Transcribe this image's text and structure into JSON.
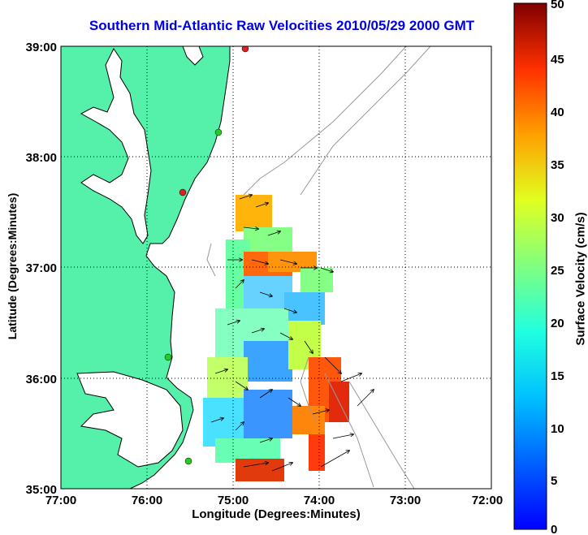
{
  "title": "Southern Mid-Atlantic Raw Velocities 2010/05/29 2000 GMT",
  "axes": {
    "xlabel": "Longitude (Degrees:Minutes)",
    "ylabel": "Latitude (Degrees:Minutes)",
    "x_ticks": [
      "77:00",
      "76:00",
      "75:00",
      "74:00",
      "73:00",
      "72:00"
    ],
    "y_ticks": [
      "39:00",
      "38:00",
      "37:00",
      "36:00",
      "35:00"
    ],
    "xlim": [
      -77,
      -72
    ],
    "ylim": [
      35,
      39
    ],
    "grid": "dotted"
  },
  "colorbar": {
    "label": "Surface Velocity (cm/s)",
    "ticks": [
      "0",
      "5",
      "10",
      "15",
      "20",
      "25",
      "30",
      "35",
      "40",
      "45",
      "50"
    ],
    "range": [
      0,
      50
    ],
    "colormap": "jet"
  },
  "colors": {
    "land": "#55f0aa",
    "coastline": "#000000",
    "bathymetry": "#999999",
    "title": "#0000e6",
    "station_green": "#22cc22",
    "station_red": "#dd2222"
  },
  "stations": [
    {
      "lon": -74.9,
      "lat": 39.0,
      "status": "active-red"
    },
    {
      "lon": -75.1,
      "lat": 38.3,
      "status": "active-green"
    },
    {
      "lon": -75.55,
      "lat": 37.6,
      "status": "active-red"
    },
    {
      "lon": -75.75,
      "lat": 36.2,
      "status": "active-green"
    },
    {
      "lon": -75.55,
      "lat": 35.3,
      "status": "active-green"
    }
  ]
}
